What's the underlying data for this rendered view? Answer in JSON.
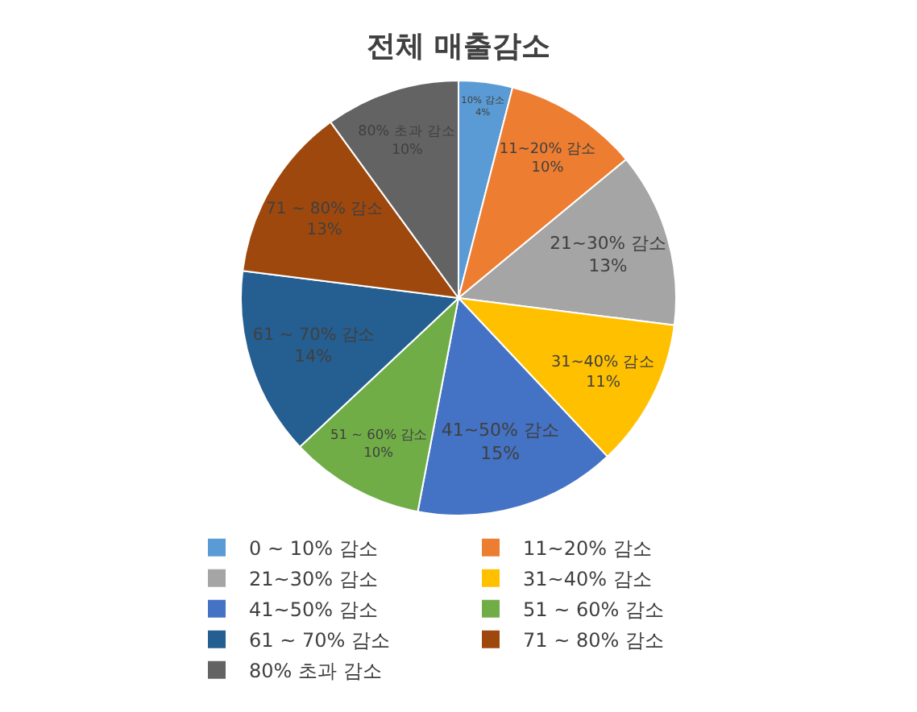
{
  "chart_data": {
    "type": "pie",
    "title": "전체 매출감소",
    "categories": [
      "0 ~ 10% 감소",
      "11~20% 감소",
      "21~30% 감소",
      "31~40% 감소",
      "41~50% 감소",
      "51 ~ 60% 감소",
      "61 ~ 70% 감소",
      "71 ~ 80% 감소",
      "80% 초과 감소"
    ],
    "values": [
      4,
      10,
      13,
      11,
      15,
      10,
      14,
      13,
      10
    ],
    "value_labels": [
      "10% 감소\n4%",
      "11~20% 감소\n10%",
      "21~30% 감소\n13%",
      "31~40% 감소\n11%",
      "41~50% 감소\n15%",
      "51 ~ 60% 감소\n10%",
      "61 ~ 70% 감소\n14%",
      "71 ~ 80% 감소\n13%",
      "80% 초과 감소\n10%"
    ],
    "colors": [
      "#5b9bd5",
      "#ed7d31",
      "#a5a5a5",
      "#ffc000",
      "#4472c4",
      "#70ad47",
      "#255e91",
      "#9e480e",
      "#636363"
    ],
    "legend": "bottom"
  }
}
